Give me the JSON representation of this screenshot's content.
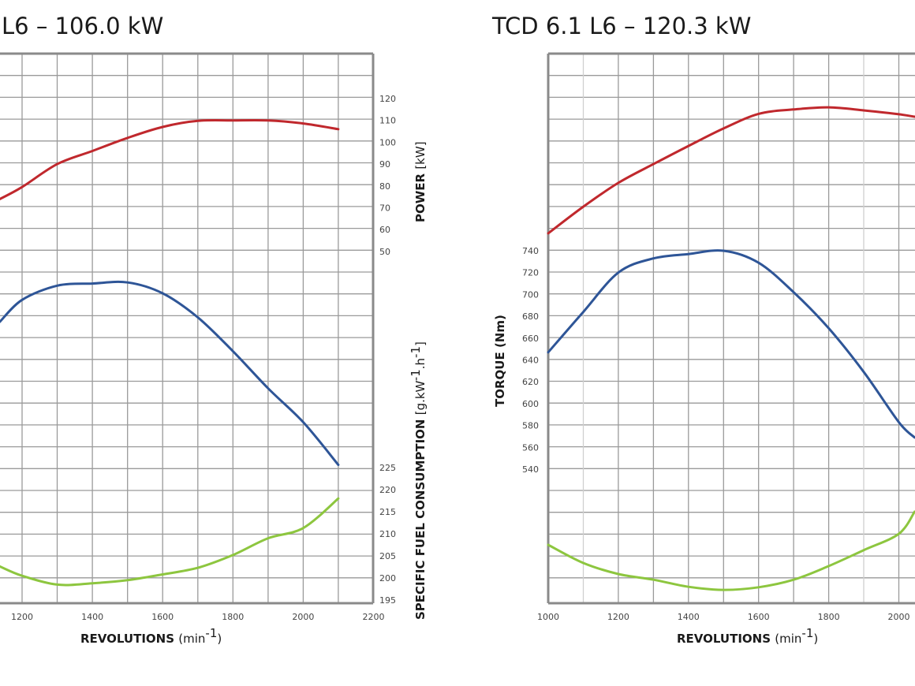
{
  "chart_data": [
    {
      "type": "line",
      "title": "L6 – 106.0 kW",
      "xlabel": "REVOLUTIONS",
      "xlabel_unit": "(min",
      "xlabel_sup": "-1",
      "xlabel_close": ")",
      "xlim": [
        1137,
        2200
      ],
      "x_ticks": [
        "1200",
        "1400",
        "1600",
        "1800",
        "2000",
        "2200"
      ],
      "grid": true,
      "y_axes": {
        "power": {
          "label": "POWER",
          "unit": "[kW]",
          "ticks": [
            "120",
            "110",
            "100",
            "90",
            "80",
            "70",
            "60",
            "50"
          ],
          "tick_values": [
            120,
            110,
            100,
            90,
            80,
            70,
            60,
            50
          ]
        },
        "sfc": {
          "label": "SPECIFIC FUEL CONSUMPTION",
          "unit": "[g.kW",
          "unit_sup1": "-1",
          "unit_mid": ".h",
          "unit_sup2": "-1",
          "unit_close": "]",
          "ticks": [
            "225",
            "220",
            "215",
            "210",
            "205",
            "200",
            "195"
          ],
          "tick_values": [
            225,
            220,
            215,
            210,
            205,
            200,
            195
          ]
        }
      },
      "series": [
        {
          "name": "Power",
          "axis": "power",
          "color": "#c0282d",
          "x": [
            1137,
            1200,
            1300,
            1400,
            1500,
            1600,
            1700,
            1800,
            1900,
            2000,
            2100
          ],
          "values": [
            74,
            79.5,
            90,
            96,
            102,
            107,
            109.8,
            110,
            110,
            108.6,
            106
          ]
        },
        {
          "name": "Torque",
          "axis": "torque",
          "color": "#2e5597",
          "x": [
            1137,
            1200,
            1300,
            1400,
            1500,
            1600,
            1700,
            1800,
            1900,
            2000,
            2100
          ],
          "values": [
            675,
            695,
            708,
            710,
            711,
            701,
            679,
            648,
            614,
            583,
            544
          ]
        },
        {
          "name": "Specific fuel consumption",
          "axis": "sfc",
          "color": "#8dc63f",
          "x": [
            1137,
            1200,
            1300,
            1400,
            1500,
            1600,
            1700,
            1800,
            1900,
            2000,
            2100
          ],
          "values": [
            202.6,
            200.5,
            198.5,
            198.8,
            199.5,
            200.8,
            202.3,
            205.2,
            209,
            211.3,
            218
          ]
        }
      ]
    },
    {
      "type": "line",
      "title": "TCD 6.1 L6 – 120.3 kW",
      "xlabel": "REVOLUTIONS",
      "xlabel_unit": "(min",
      "xlabel_sup": "-1",
      "xlabel_close": ")",
      "xlim": [
        1000,
        2045
      ],
      "x_ticks": [
        "1000",
        "1200",
        "1400",
        "1600",
        "1800",
        "2000"
      ],
      "grid": true,
      "y_axes": {
        "torque": {
          "label": "TORQUE",
          "unit": "(Nm)",
          "ticks": [
            "740",
            "720",
            "700",
            "680",
            "660",
            "640",
            "620",
            "600",
            "580",
            "560",
            "540"
          ],
          "tick_values": [
            740,
            720,
            700,
            680,
            660,
            640,
            620,
            600,
            580,
            560,
            540
          ]
        }
      },
      "series": [
        {
          "name": "Power",
          "axis": "power",
          "color": "#c0282d",
          "x": [
            1000,
            1100,
            1200,
            1300,
            1400,
            1500,
            1600,
            1700,
            1800,
            1900,
            2000,
            2045
          ],
          "values": [
            58.3,
            70.5,
            81.4,
            90,
            98.3,
            106.3,
            113,
            115,
            116,
            114.6,
            112.8,
            111.7
          ]
        },
        {
          "name": "Torque",
          "axis": "torque",
          "color": "#2e5597",
          "x": [
            1000,
            1100,
            1200,
            1300,
            1400,
            1500,
            1600,
            1700,
            1800,
            1900,
            2000,
            2045
          ],
          "values": [
            647,
            684,
            720,
            733,
            737,
            740,
            729,
            702,
            669,
            629,
            583,
            569
          ]
        },
        {
          "name": "Specific fuel consumption",
          "axis": "sfc",
          "color": "#8dc63f",
          "x": [
            1000,
            1100,
            1200,
            1300,
            1400,
            1500,
            1600,
            1700,
            1800,
            1900,
            2000,
            2045
          ],
          "values": [
            207.5,
            203.4,
            200.9,
            199.6,
            198,
            197.3,
            197.9,
            199.6,
            202.7,
            206.3,
            210,
            215
          ]
        }
      ]
    }
  ]
}
